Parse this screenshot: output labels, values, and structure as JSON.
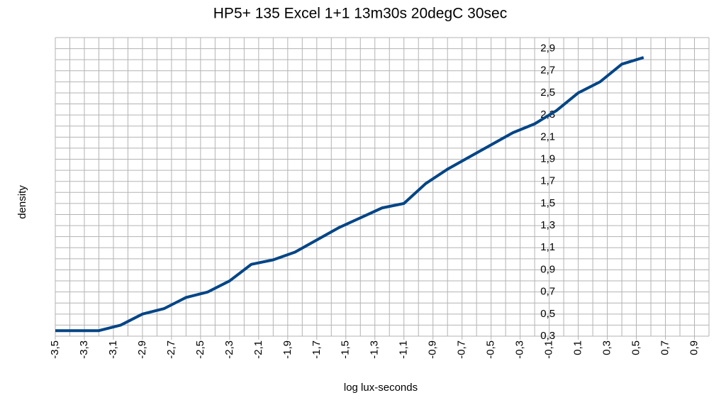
{
  "chart_data": {
    "type": "line",
    "title": "HP5+ 135 Excel 1+1 13m30s 20degC 30sec",
    "xlabel": "log lux-seconds",
    "ylabel": "density",
    "color": "#004586",
    "x": [
      -3.5,
      -3.35,
      -3.2,
      -3.05,
      -2.9,
      -2.75,
      -2.6,
      -2.45,
      -2.3,
      -2.15,
      -2.0,
      -1.85,
      -1.7,
      -1.55,
      -1.4,
      -1.25,
      -1.1,
      -0.95,
      -0.8,
      -0.65,
      -0.5,
      -0.35,
      -0.2,
      -0.05,
      0.1,
      0.25,
      0.4,
      0.55
    ],
    "values": [
      0.35,
      0.35,
      0.35,
      0.4,
      0.5,
      0.55,
      0.65,
      0.7,
      0.8,
      0.95,
      0.99,
      1.06,
      1.17,
      1.28,
      1.37,
      1.46,
      1.5,
      1.68,
      1.81,
      1.92,
      2.03,
      2.14,
      2.22,
      2.34,
      2.5,
      2.6,
      2.76,
      2.82
    ],
    "xlim": [
      -3.5,
      1.0
    ],
    "ylim": [
      0.3,
      3.0
    ],
    "xticks": [
      {
        "value": -3.5,
        "label": "-3,5"
      },
      {
        "value": -3.3,
        "label": "-3,3"
      },
      {
        "value": -3.1,
        "label": "-3,1"
      },
      {
        "value": -2.9,
        "label": "-2,9"
      },
      {
        "value": -2.7,
        "label": "-2,7"
      },
      {
        "value": -2.5,
        "label": "-2,5"
      },
      {
        "value": -2.3,
        "label": "-2,3"
      },
      {
        "value": -2.1,
        "label": "-2,1"
      },
      {
        "value": -1.9,
        "label": "-1,9"
      },
      {
        "value": -1.7,
        "label": "-1,7"
      },
      {
        "value": -1.5,
        "label": "-1,5"
      },
      {
        "value": -1.3,
        "label": "-1,3"
      },
      {
        "value": -1.1,
        "label": "-1,1"
      },
      {
        "value": -0.9,
        "label": "-0,9"
      },
      {
        "value": -0.7,
        "label": "-0,7"
      },
      {
        "value": -0.5,
        "label": "-0,5"
      },
      {
        "value": -0.3,
        "label": "-0,3"
      },
      {
        "value": -0.1,
        "label": "-0,1"
      },
      {
        "value": 0.1,
        "label": "0,1"
      },
      {
        "value": 0.3,
        "label": "0,3"
      },
      {
        "value": 0.5,
        "label": "0,5"
      },
      {
        "value": 0.7,
        "label": "0,7"
      },
      {
        "value": 0.9,
        "label": "0,9"
      }
    ],
    "yticks": [
      {
        "value": 0.3,
        "label": "0,3"
      },
      {
        "value": 0.5,
        "label": "0,5"
      },
      {
        "value": 0.7,
        "label": "0,7"
      },
      {
        "value": 0.9,
        "label": "0,9"
      },
      {
        "value": 1.1,
        "label": "1,1"
      },
      {
        "value": 1.3,
        "label": "1,3"
      },
      {
        "value": 1.5,
        "label": "1,5"
      },
      {
        "value": 1.7,
        "label": "1,7"
      },
      {
        "value": 1.9,
        "label": "1,9"
      },
      {
        "value": 2.1,
        "label": "2,1"
      },
      {
        "value": 2.3,
        "label": "2,3"
      },
      {
        "value": 2.5,
        "label": "2,5"
      },
      {
        "value": 2.7,
        "label": "2,7"
      },
      {
        "value": 2.9,
        "label": "2,9"
      }
    ],
    "xgrid": [
      -3.5,
      -3.4,
      -3.3,
      -3.2,
      -3.1,
      -3.0,
      -2.9,
      -2.8,
      -2.7,
      -2.6,
      -2.5,
      -2.4,
      -2.3,
      -2.2,
      -2.1,
      -2.0,
      -1.9,
      -1.8,
      -1.7,
      -1.6,
      -1.5,
      -1.4,
      -1.3,
      -1.2,
      -1.1,
      -1.0,
      -0.9,
      -0.8,
      -0.7,
      -0.6,
      -0.5,
      -0.4,
      -0.3,
      -0.2,
      -0.1,
      0.0,
      0.1,
      0.2,
      0.3,
      0.4,
      0.5,
      0.6,
      0.7,
      0.8,
      0.9,
      1.0
    ],
    "ygrid": [
      0.3,
      0.4,
      0.5,
      0.6,
      0.7,
      0.8,
      0.9,
      1.0,
      1.1,
      1.2,
      1.3,
      1.4,
      1.5,
      1.6,
      1.7,
      1.8,
      1.9,
      2.0,
      2.1,
      2.2,
      2.3,
      2.4,
      2.5,
      2.6,
      2.7,
      2.8,
      2.9,
      3.0
    ],
    "grid": true
  }
}
